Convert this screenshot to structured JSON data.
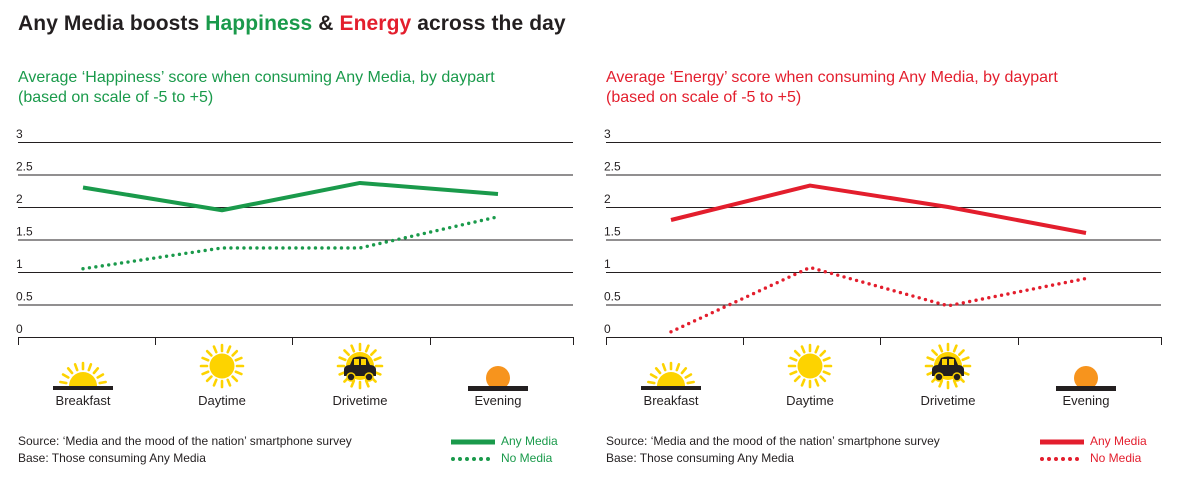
{
  "title": {
    "prefix": "Any Media boosts ",
    "highlight1": "Happiness",
    "joiner": " & ",
    "highlight2": "Energy",
    "suffix": " across the day"
  },
  "colors": {
    "happiness": "#1a9a4b",
    "energy": "#e31e2d",
    "text": "#231f20",
    "grid": "#231f20"
  },
  "chart_data": [
    {
      "type": "line",
      "title_line1": "Average ‘Happiness’ score when consuming Any Media, by daypart",
      "title_line2": "(based on scale of -5 to +5)",
      "categories": [
        "Breakfast",
        "Daytime",
        "Drivetime",
        "Evening"
      ],
      "category_icons": [
        "sunrise-icon",
        "sun-icon",
        "car-sun-icon",
        "sunset-icon"
      ],
      "yticks": [
        "0",
        "0.5",
        "1",
        "1.5",
        "2",
        "2.5",
        "3"
      ],
      "ylim": [
        0,
        3
      ],
      "grid": true,
      "series": [
        {
          "name": "Any Media",
          "values": [
            2.3,
            1.95,
            2.37,
            2.2
          ],
          "style": "solid",
          "color": "#1a9a4b"
        },
        {
          "name": "No Media",
          "values": [
            1.05,
            1.37,
            1.37,
            1.85
          ],
          "style": "dotted",
          "color": "#1a9a4b"
        }
      ],
      "source": "Source: ‘Media and the mood of the nation’ smartphone survey",
      "base": "Base: Those consuming Any Media",
      "legend_position": "bottom-right"
    },
    {
      "type": "line",
      "title_line1": "Average ‘Energy’ score when consuming Any Media, by daypart",
      "title_line2": "(based on scale of -5 to +5)",
      "categories": [
        "Breakfast",
        "Daytime",
        "Drivetime",
        "Evening"
      ],
      "category_icons": [
        "sunrise-icon",
        "sun-icon",
        "car-sun-icon",
        "sunset-icon"
      ],
      "yticks": [
        "0",
        "0.5",
        "1",
        "1.5",
        "2",
        "2.5",
        "3"
      ],
      "ylim": [
        0,
        3
      ],
      "grid": true,
      "series": [
        {
          "name": "Any Media",
          "values": [
            1.8,
            2.33,
            2.0,
            1.6
          ],
          "style": "solid",
          "color": "#e31e2d"
        },
        {
          "name": "No Media",
          "values": [
            0.08,
            1.07,
            0.48,
            0.9
          ],
          "style": "dotted",
          "color": "#e31e2d"
        }
      ],
      "source": "Source: ‘Media and the mood of the nation’ smartphone survey",
      "base": "Base: Those consuming Any Media",
      "legend_position": "bottom-right"
    }
  ]
}
